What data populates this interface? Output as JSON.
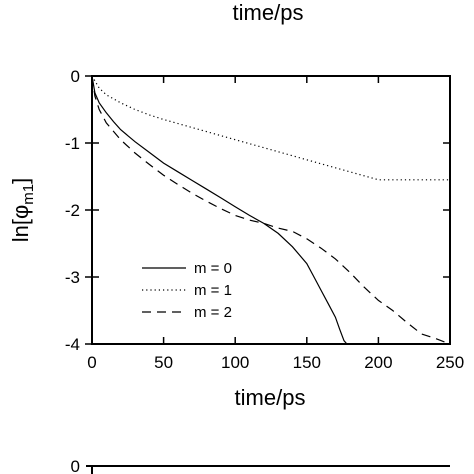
{
  "figure": {
    "top_label": "time/ps",
    "bottom_panel_tick": "0"
  },
  "chart_data": {
    "type": "line",
    "xlabel": "time/ps",
    "ylabel_main": "ln[φ",
    "ylabel_sub": "m1",
    "ylabel_close": "]",
    "xlim": [
      0,
      250
    ],
    "ylim": [
      -4,
      0
    ],
    "xticks": [
      0,
      50,
      100,
      150,
      200,
      250
    ],
    "yticks": [
      0,
      -1,
      -2,
      -3,
      -4
    ],
    "grid": false,
    "legend_position": "lower-left",
    "series": [
      {
        "name": "m = 0",
        "style": "solid",
        "x": [
          0,
          2,
          5,
          10,
          15,
          20,
          30,
          40,
          50,
          60,
          70,
          80,
          90,
          100,
          110,
          120,
          130,
          140,
          150,
          155,
          160,
          165,
          170,
          173,
          176,
          178
        ],
        "y": [
          0,
          -0.25,
          -0.4,
          -0.55,
          -0.68,
          -0.8,
          -0.98,
          -1.14,
          -1.3,
          -1.43,
          -1.56,
          -1.69,
          -1.82,
          -1.95,
          -2.08,
          -2.2,
          -2.35,
          -2.55,
          -2.8,
          -3.0,
          -3.2,
          -3.4,
          -3.6,
          -3.78,
          -3.95,
          -4.0
        ]
      },
      {
        "name": "m = 1",
        "style": "dotted",
        "x": [
          0,
          5,
          10,
          20,
          30,
          40,
          50,
          75,
          100,
          125,
          150,
          175,
          200,
          225,
          250
        ],
        "y": [
          0,
          -0.18,
          -0.28,
          -0.4,
          -0.5,
          -0.58,
          -0.65,
          -0.8,
          -0.95,
          -1.1,
          -1.25,
          -1.4,
          -1.55,
          -1.55,
          -1.55
        ]
      },
      {
        "name": "m = 2",
        "style": "dashed",
        "x": [
          0,
          2,
          5,
          10,
          20,
          30,
          40,
          50,
          60,
          70,
          80,
          90,
          100,
          110,
          120,
          130,
          140,
          150,
          160,
          170,
          180,
          190,
          200,
          210,
          220,
          230,
          240,
          250
        ],
        "y": [
          0,
          -0.3,
          -0.5,
          -0.7,
          -0.95,
          -1.15,
          -1.32,
          -1.48,
          -1.62,
          -1.75,
          -1.87,
          -1.98,
          -2.08,
          -2.15,
          -2.2,
          -2.27,
          -2.32,
          -2.43,
          -2.57,
          -2.73,
          -2.93,
          -3.15,
          -3.35,
          -3.5,
          -3.68,
          -3.85,
          -3.92,
          -4.0
        ]
      }
    ]
  }
}
